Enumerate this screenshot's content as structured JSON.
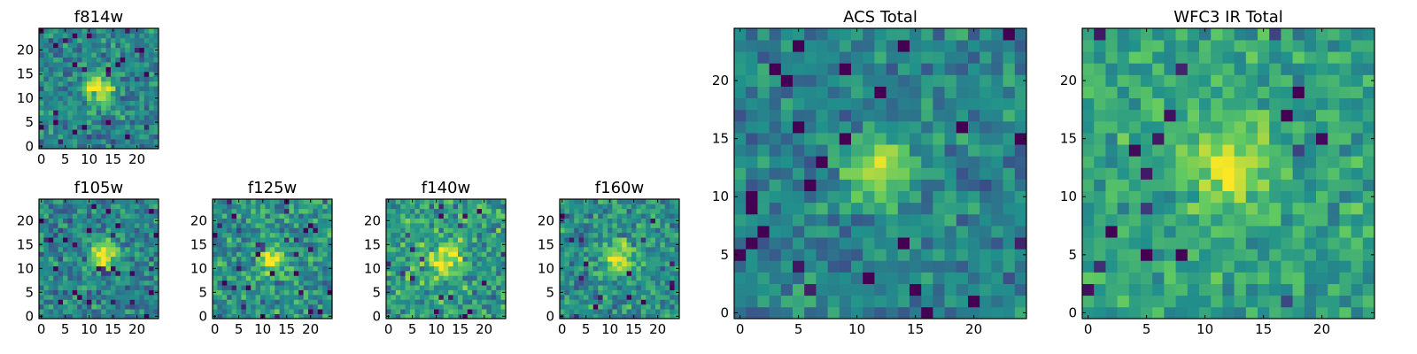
{
  "chart_data": [
    {
      "id": "f814w",
      "type": "heatmap",
      "title": "f814w",
      "size": 25,
      "seed": 11,
      "source_center": [
        12,
        12
      ],
      "source_amp": 0.55,
      "source_sigma": 2.2,
      "base": 0.45,
      "noise": 0.26,
      "xlim": [
        0,
        24
      ],
      "ylim": [
        0,
        24
      ],
      "xticks": [
        0,
        5,
        10,
        15,
        20
      ],
      "yticks": [
        0,
        5,
        10,
        15,
        20
      ],
      "xtick_labels": [
        "0",
        "5",
        "10",
        "15",
        "20"
      ],
      "ytick_labels": [
        "0",
        "5",
        "10",
        "15",
        "20"
      ]
    },
    {
      "id": "f105w",
      "type": "heatmap",
      "title": "f105w",
      "size": 25,
      "seed": 23,
      "source_center": [
        13,
        13
      ],
      "source_amp": 0.5,
      "source_sigma": 2.3,
      "base": 0.45,
      "noise": 0.26,
      "xlim": [
        0,
        24
      ],
      "ylim": [
        0,
        24
      ],
      "xticks": [
        0,
        5,
        10,
        15,
        20
      ],
      "yticks": [
        0,
        5,
        10,
        15,
        20
      ],
      "xtick_labels": [
        "0",
        "5",
        "10",
        "15",
        "20"
      ],
      "ytick_labels": [
        "0",
        "5",
        "10",
        "15",
        "20"
      ]
    },
    {
      "id": "f125w",
      "type": "heatmap",
      "title": "f125w",
      "size": 25,
      "seed": 37,
      "source_center": [
        12,
        12
      ],
      "source_amp": 0.4,
      "source_sigma": 2.2,
      "base": 0.5,
      "noise": 0.3,
      "xlim": [
        0,
        24
      ],
      "ylim": [
        0,
        24
      ],
      "xticks": [
        0,
        5,
        10,
        15,
        20
      ],
      "yticks": [
        0,
        5,
        10,
        15,
        20
      ],
      "xtick_labels": [
        "0",
        "5",
        "10",
        "15",
        "20"
      ],
      "ytick_labels": [
        "0",
        "5",
        "10",
        "15",
        "20"
      ]
    },
    {
      "id": "f140w",
      "type": "heatmap",
      "title": "f140w",
      "size": 25,
      "seed": 41,
      "source_center": [
        12,
        12
      ],
      "source_amp": 0.45,
      "source_sigma": 2.4,
      "base": 0.55,
      "noise": 0.3,
      "xlim": [
        0,
        24
      ],
      "ylim": [
        0,
        24
      ],
      "xticks": [
        0,
        5,
        10,
        15,
        20
      ],
      "yticks": [
        0,
        5,
        10,
        15,
        20
      ],
      "xtick_labels": [
        "0",
        "5",
        "10",
        "15",
        "20"
      ],
      "ytick_labels": [
        "0",
        "5",
        "10",
        "15",
        "20"
      ]
    },
    {
      "id": "f160w",
      "type": "heatmap",
      "title": "f160w",
      "size": 25,
      "seed": 53,
      "source_center": [
        12,
        12
      ],
      "source_amp": 0.45,
      "source_sigma": 2.3,
      "base": 0.5,
      "noise": 0.28,
      "xlim": [
        0,
        24
      ],
      "ylim": [
        0,
        24
      ],
      "xticks": [
        0,
        5,
        10,
        15,
        20
      ],
      "yticks": [
        0,
        5,
        10,
        15,
        20
      ],
      "xtick_labels": [
        "0",
        "5",
        "10",
        "15",
        "20"
      ],
      "ytick_labels": [
        "0",
        "5",
        "10",
        "15",
        "20"
      ]
    },
    {
      "id": "acs-total",
      "type": "heatmap",
      "title": "ACS Total",
      "size": 25,
      "seed": 67,
      "source_center": [
        12,
        12.5
      ],
      "source_amp": 0.55,
      "source_sigma": 1.9,
      "base": 0.45,
      "noise": 0.22,
      "xlim": [
        0,
        24
      ],
      "ylim": [
        0,
        24
      ],
      "xticks": [
        0,
        5,
        10,
        15,
        20
      ],
      "yticks": [
        0,
        5,
        10,
        15,
        20
      ],
      "xtick_labels": [
        "0",
        "5",
        "10",
        "15",
        "20"
      ],
      "ytick_labels": [
        "0",
        "5",
        "10",
        "15",
        "20"
      ]
    },
    {
      "id": "wfc3-ir-total",
      "type": "heatmap",
      "title": "WFC3 IR Total",
      "size": 25,
      "seed": 79,
      "source_center": [
        12,
        12.5
      ],
      "source_amp": 0.35,
      "source_sigma": 2.4,
      "base": 0.58,
      "noise": 0.22,
      "xlim": [
        0,
        24
      ],
      "ylim": [
        0,
        24
      ],
      "xticks": [
        0,
        5,
        10,
        15,
        20
      ],
      "yticks": [
        0,
        5,
        10,
        15,
        20
      ],
      "xtick_labels": [
        "0",
        "5",
        "10",
        "15",
        "20"
      ],
      "ytick_labels": [
        "0",
        "5",
        "10",
        "15",
        "20"
      ]
    }
  ],
  "colormap": [
    "#440154",
    "#3b528b",
    "#21918c",
    "#5ec962",
    "#fde725"
  ]
}
